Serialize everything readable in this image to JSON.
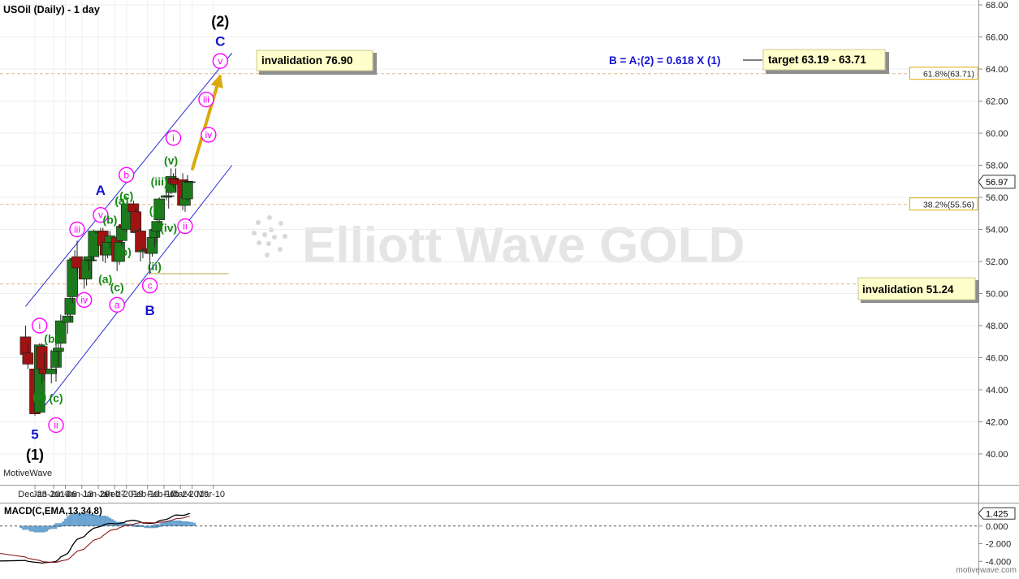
{
  "header": {
    "title": "USOil (Daily) - 1 day"
  },
  "branding": {
    "platform_label": "MotiveWave",
    "site_url": "motivewave.com"
  },
  "watermark": {
    "text": "Elliott Wave GOLD"
  },
  "colors": {
    "up_candle": "#1c7a1c",
    "down_candle": "#a11313",
    "channel": "#2b2bd6",
    "magenta_label": "#ff00ff",
    "green_label": "#138a13",
    "blue_label": "#1515d0",
    "arrow": "#d9aa0b",
    "note_box": "#ffffcc",
    "macd_hist": "#6fa8d4",
    "macd_line": "#000000",
    "signal_line": "#8b1a1a"
  },
  "chart_data": [
    {
      "type": "candlestick",
      "title": "USOil (Daily) - 1 day",
      "ylim": [
        39.0,
        68.5
      ],
      "y_ticks": [
        "40.00",
        "42.00",
        "44.00",
        "46.00",
        "48.00",
        "50.00",
        "52.00",
        "54.00",
        "56.00",
        "58.00",
        "60.00",
        "62.00",
        "64.00",
        "66.00",
        "68.00"
      ],
      "x_tick_labels": [
        "Dec-23",
        "Jan-2019",
        "Jan-06",
        "Jan-13",
        "Jan-20",
        "Jan-27",
        "Feb-2019",
        "Feb-10",
        "Feb-17",
        "Feb-24",
        "Mar-2019",
        "Mar-10"
      ],
      "last_price": "56.97",
      "candles": [
        {
          "date": "2018-12-20",
          "o": 47.3,
          "h": 48.0,
          "l": 45.9,
          "c": 46.2
        },
        {
          "date": "2018-12-21",
          "o": 46.3,
          "h": 46.9,
          "l": 45.3,
          "c": 45.6
        },
        {
          "date": "2018-12-24",
          "o": 45.3,
          "h": 45.6,
          "l": 42.4,
          "c": 42.5
        },
        {
          "date": "2018-12-26",
          "o": 42.6,
          "h": 46.9,
          "l": 42.5,
          "c": 46.8
        },
        {
          "date": "2018-12-27",
          "o": 46.7,
          "h": 46.9,
          "l": 44.4,
          "c": 45.3
        },
        {
          "date": "2018-12-28",
          "o": 45.3,
          "h": 46.3,
          "l": 44.6,
          "c": 45.0
        },
        {
          "date": "2018-12-31",
          "o": 45.0,
          "h": 46.5,
          "l": 44.4,
          "c": 45.3
        },
        {
          "date": "2019-01-02",
          "o": 45.4,
          "h": 47.8,
          "l": 44.5,
          "c": 46.4
        },
        {
          "date": "2019-01-03",
          "o": 46.4,
          "h": 47.6,
          "l": 45.4,
          "c": 46.6
        },
        {
          "date": "2019-01-04",
          "o": 46.9,
          "h": 48.7,
          "l": 46.6,
          "c": 48.3
        },
        {
          "date": "2019-01-07",
          "o": 48.2,
          "h": 49.1,
          "l": 47.5,
          "c": 48.6
        },
        {
          "date": "2019-01-08",
          "o": 48.7,
          "h": 50.2,
          "l": 48.3,
          "c": 49.7
        },
        {
          "date": "2019-01-09",
          "o": 49.8,
          "h": 52.3,
          "l": 49.4,
          "c": 52.1
        },
        {
          "date": "2019-01-10",
          "o": 52.1,
          "h": 52.7,
          "l": 51.6,
          "c": 52.2
        },
        {
          "date": "2019-01-11",
          "o": 52.3,
          "h": 53.3,
          "l": 51.3,
          "c": 51.6
        },
        {
          "date": "2019-01-14",
          "o": 51.6,
          "h": 52.1,
          "l": 50.3,
          "c": 50.9
        },
        {
          "date": "2019-01-15",
          "o": 50.9,
          "h": 52.3,
          "l": 50.5,
          "c": 52.1
        },
        {
          "date": "2019-01-16",
          "o": 52.1,
          "h": 52.7,
          "l": 51.4,
          "c": 52.3
        },
        {
          "date": "2019-01-17",
          "o": 52.1,
          "h": 53.0,
          "l": 51.0,
          "c": 52.1
        },
        {
          "date": "2019-01-18",
          "o": 52.3,
          "h": 54.0,
          "l": 52.0,
          "c": 53.9
        },
        {
          "date": "2019-01-21",
          "o": 53.8,
          "h": 54.1,
          "l": 53.2,
          "c": 53.9
        },
        {
          "date": "2019-01-22",
          "o": 53.9,
          "h": 54.1,
          "l": 52.0,
          "c": 53.0
        },
        {
          "date": "2019-01-23",
          "o": 53.0,
          "h": 53.6,
          "l": 51.9,
          "c": 52.4
        },
        {
          "date": "2019-01-24",
          "o": 52.4,
          "h": 53.4,
          "l": 52.2,
          "c": 53.2
        },
        {
          "date": "2019-01-25",
          "o": 53.2,
          "h": 53.9,
          "l": 52.8,
          "c": 53.6
        },
        {
          "date": "2019-01-28",
          "o": 53.5,
          "h": 53.6,
          "l": 51.4,
          "c": 52.0
        },
        {
          "date": "2019-01-29",
          "o": 52.0,
          "h": 53.6,
          "l": 51.8,
          "c": 53.2
        },
        {
          "date": "2019-01-30",
          "o": 53.3,
          "h": 54.9,
          "l": 53.0,
          "c": 54.2
        },
        {
          "date": "2019-01-31",
          "o": 54.3,
          "h": 55.7,
          "l": 53.9,
          "c": 54.1
        },
        {
          "date": "2019-02-01",
          "o": 54.0,
          "h": 55.6,
          "l": 53.8,
          "c": 55.6
        },
        {
          "date": "2019-02-04",
          "o": 55.6,
          "h": 55.8,
          "l": 54.3,
          "c": 55.1
        },
        {
          "date": "2019-02-05",
          "o": 55.1,
          "h": 55.3,
          "l": 53.5,
          "c": 53.8
        },
        {
          "date": "2019-02-06",
          "o": 53.8,
          "h": 54.0,
          "l": 53.1,
          "c": 53.9
        },
        {
          "date": "2019-02-07",
          "o": 53.9,
          "h": 54.1,
          "l": 52.0,
          "c": 52.6
        },
        {
          "date": "2019-02-08",
          "o": 52.6,
          "h": 52.9,
          "l": 52.2,
          "c": 52.7
        },
        {
          "date": "2019-02-11",
          "o": 52.8,
          "h": 52.9,
          "l": 51.2,
          "c": 52.5
        },
        {
          "date": "2019-02-12",
          "o": 52.5,
          "h": 53.9,
          "l": 52.3,
          "c": 53.5
        },
        {
          "date": "2019-02-13",
          "o": 53.5,
          "h": 54.0,
          "l": 52.9,
          "c": 54.0
        },
        {
          "date": "2019-02-14",
          "o": 53.9,
          "h": 54.7,
          "l": 53.1,
          "c": 54.5
        },
        {
          "date": "2019-02-15",
          "o": 54.6,
          "h": 56.0,
          "l": 54.4,
          "c": 55.9
        },
        {
          "date": "2019-02-18",
          "o": 56.0,
          "h": 56.3,
          "l": 55.8,
          "c": 56.1
        },
        {
          "date": "2019-02-19",
          "o": 56.1,
          "h": 56.3,
          "l": 55.3,
          "c": 56.1
        },
        {
          "date": "2019-02-20",
          "o": 56.3,
          "h": 57.8,
          "l": 56.2,
          "c": 57.3
        },
        {
          "date": "2019-02-21",
          "o": 57.2,
          "h": 57.5,
          "l": 56.6,
          "c": 56.9
        },
        {
          "date": "2019-02-22",
          "o": 57.1,
          "h": 57.8,
          "l": 56.4,
          "c": 56.8
        },
        {
          "date": "2019-02-25",
          "o": 57.1,
          "h": 57.5,
          "l": 55.2,
          "c": 55.5
        },
        {
          "date": "2019-02-26",
          "o": 55.5,
          "h": 56.1,
          "l": 55.1,
          "c": 56.0
        },
        {
          "date": "2019-02-27",
          "o": 55.9,
          "h": 57.4,
          "l": 55.8,
          "c": 57.0
        },
        {
          "date": "2019-02-28",
          "o": 56.97,
          "h": 56.97,
          "l": 56.97,
          "c": 56.97
        }
      ],
      "retracements": [
        {
          "label": "61.8%(63.71)",
          "value": 63.71
        },
        {
          "label": "38.2%(55.56)",
          "value": 55.56
        },
        {
          "label": "",
          "value": 50.6
        }
      ],
      "channel_lines": [
        {
          "from": [
            "2018-12-26",
            42.6
          ],
          "to": [
            "2019-03-18",
            58.0
          ]
        },
        {
          "from": [
            "2018-12-20",
            49.2
          ],
          "to": [
            "2019-03-18",
            65.0
          ]
        }
      ],
      "invalidation_line": {
        "value": 51.24,
        "from": "2019-02-11",
        "to": "2019-03-18"
      },
      "projection_arrow": {
        "from": [
          "2019-03-01",
          57.7
        ],
        "to": [
          "2019-03-13",
          63.6
        ]
      },
      "annotations": [
        {
          "text": "invalidation 76.90",
          "style": "box"
        },
        {
          "text": "B = A;(2) = 0.618 X (1)",
          "style": "blue-text"
        },
        {
          "text": "target 63.19 - 63.71",
          "style": "box"
        },
        {
          "text": "invalidation 51.24",
          "style": "box"
        }
      ],
      "wave_labels": [
        {
          "t": "5",
          "d": "2018-12-24",
          "p": 41.2,
          "c": "blue"
        },
        {
          "t": "(1)",
          "d": "2018-12-24",
          "p": 39.9,
          "c": "black"
        },
        {
          "t": "i",
          "d": "2018-12-26",
          "p": 48.0,
          "c": "magenta"
        },
        {
          "t": "(a)",
          "d": "2018-12-26",
          "p": 43.6,
          "c": "green"
        },
        {
          "t": "(b)",
          "d": "2018-12-31",
          "p": 47.2,
          "c": "green"
        },
        {
          "t": "(c)",
          "d": "2019-01-02",
          "p": 43.5,
          "c": "green"
        },
        {
          "t": "ii",
          "d": "2019-01-02",
          "p": 41.8,
          "c": "magenta"
        },
        {
          "t": "iii",
          "d": "2019-01-11",
          "p": 54.0,
          "c": "magenta"
        },
        {
          "t": "iv",
          "d": "2019-01-14",
          "p": 49.6,
          "c": "magenta"
        },
        {
          "t": "A",
          "d": "2019-01-21",
          "p": 56.4,
          "c": "blue"
        },
        {
          "t": "v",
          "d": "2019-01-21",
          "p": 54.9,
          "c": "magenta"
        },
        {
          "t": "(a)",
          "d": "2019-01-23",
          "p": 50.9,
          "c": "green"
        },
        {
          "t": "(b)",
          "d": "2019-01-25",
          "p": 54.6,
          "c": "green"
        },
        {
          "t": "(c)",
          "d": "2019-01-28",
          "p": 50.4,
          "c": "green"
        },
        {
          "t": "a",
          "d": "2019-01-28",
          "p": 49.3,
          "c": "magenta"
        },
        {
          "t": "(a)",
          "d": "2019-01-30",
          "p": 55.8,
          "c": "green"
        },
        {
          "t": "(b)",
          "d": "2019-01-31",
          "p": 52.6,
          "c": "green"
        },
        {
          "t": "b",
          "d": "2019-02-01",
          "p": 57.4,
          "c": "magenta"
        },
        {
          "t": "(c)",
          "d": "2019-02-01",
          "p": 56.1,
          "c": "green"
        },
        {
          "t": "c",
          "d": "2019-02-11",
          "p": 50.5,
          "c": "magenta"
        },
        {
          "t": "B",
          "d": "2019-02-11",
          "p": 48.9,
          "c": "blue"
        },
        {
          "t": "(i)",
          "d": "2019-02-13",
          "p": 55.2,
          "c": "green"
        },
        {
          "t": "(ii)",
          "d": "2019-02-13",
          "p": 51.7,
          "c": "green"
        },
        {
          "t": "(iii)",
          "d": "2019-02-15",
          "p": 57.0,
          "c": "green"
        },
        {
          "t": "(iv)",
          "d": "2019-02-19",
          "p": 54.1,
          "c": "green"
        },
        {
          "t": "(v)",
          "d": "2019-02-20",
          "p": 58.3,
          "c": "green"
        },
        {
          "t": "i",
          "d": "2019-02-21",
          "p": 59.7,
          "c": "magenta"
        },
        {
          "t": "ii",
          "d": "2019-02-26",
          "p": 54.2,
          "c": "magenta"
        },
        {
          "t": "iii",
          "d": "2019-03-07",
          "p": 62.1,
          "c": "magenta"
        },
        {
          "t": "iv",
          "d": "2019-03-08",
          "p": 59.9,
          "c": "magenta"
        },
        {
          "t": "v",
          "d": "2019-03-13",
          "p": 64.5,
          "c": "magenta"
        },
        {
          "t": "C",
          "d": "2019-03-13",
          "p": 65.7,
          "c": "blue"
        },
        {
          "t": "(2)",
          "d": "2019-03-13",
          "p": 66.9,
          "c": "black"
        }
      ]
    },
    {
      "type": "histogram+line",
      "title": "MACD(C,EMA,13,34,8)",
      "ylim": [
        -4.8,
        2.0
      ],
      "y_ticks": [
        "1.425",
        "0.000",
        "-2.000",
        "-4.000"
      ],
      "current_value": "1.425",
      "histogram": [
        -0.2,
        -0.4,
        -0.6,
        -0.7,
        -0.6,
        -0.4,
        -0.3,
        -0.1,
        0.1,
        0.3,
        0.5,
        0.8,
        1.1,
        1.3,
        1.4,
        1.4,
        1.35,
        1.3,
        1.25,
        1.2,
        1.15,
        1.05,
        0.9,
        0.75,
        0.6,
        0.45,
        0.35,
        0.25,
        0.2,
        0.2,
        0.15,
        0.1,
        0.05,
        0.0,
        -0.1,
        -0.2,
        -0.2,
        -0.1,
        0.05,
        0.2,
        0.35,
        0.45,
        0.55,
        0.6,
        0.6,
        0.5,
        0.45,
        0.4,
        0.35
      ],
      "macd": [
        -3.9,
        -4.0,
        -4.1,
        -4.15,
        -4.2,
        -4.15,
        -4.1,
        -4.0,
        -3.8,
        -3.5,
        -3.1,
        -2.7,
        -2.2,
        -1.8,
        -1.5,
        -1.2,
        -0.9,
        -0.65,
        -0.45,
        -0.25,
        -0.05,
        0.1,
        0.2,
        0.25,
        0.3,
        0.25,
        0.3,
        0.35,
        0.4,
        0.55,
        0.65,
        0.6,
        0.55,
        0.45,
        0.35,
        0.3,
        0.3,
        0.35,
        0.45,
        0.6,
        0.75,
        0.85,
        1.0,
        1.15,
        1.25,
        1.2,
        1.25,
        1.35,
        1.425
      ],
      "signal": [
        -3.5,
        -3.65,
        -3.8,
        -3.9,
        -4.0,
        -4.05,
        -4.1,
        -4.1,
        -4.05,
        -3.95,
        -3.8,
        -3.6,
        -3.35,
        -3.1,
        -2.85,
        -2.6,
        -2.35,
        -2.1,
        -1.85,
        -1.6,
        -1.35,
        -1.1,
        -0.9,
        -0.7,
        -0.5,
        -0.35,
        -0.2,
        -0.1,
        0.0,
        0.1,
        0.2,
        0.3,
        0.35,
        0.38,
        0.38,
        0.37,
        0.36,
        0.36,
        0.38,
        0.42,
        0.48,
        0.55,
        0.63,
        0.72,
        0.82,
        0.9,
        0.98,
        1.05,
        1.12
      ]
    }
  ]
}
